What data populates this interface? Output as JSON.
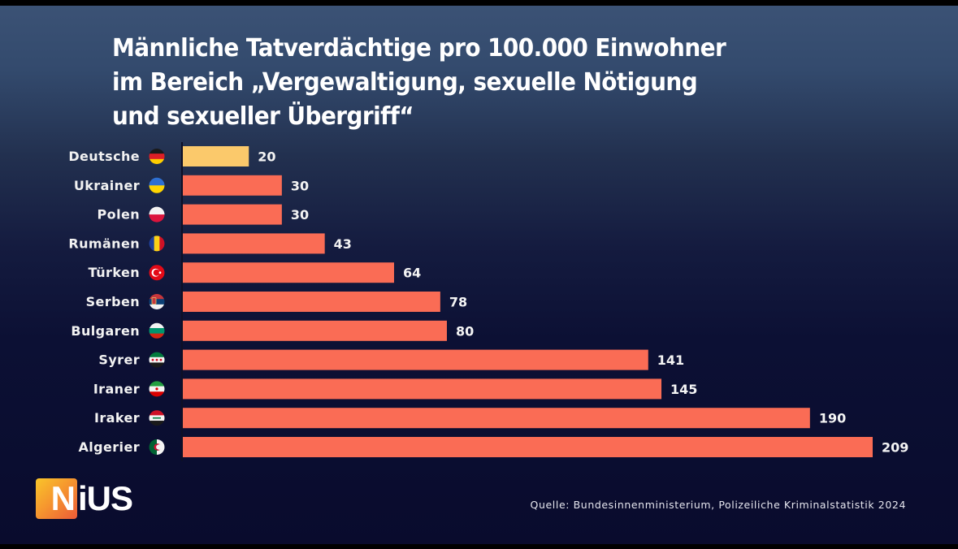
{
  "title_lines": [
    "Männliche Tatverdächtige pro 100.000 Einwohner",
    "im Bereich „Vergewaltigung, sexuelle Nötigung",
    "und sexueller Übergriff“"
  ],
  "chart_data": {
    "type": "bar",
    "orientation": "horizontal",
    "title": "Männliche Tatverdächtige pro 100.000 Einwohner im Bereich „Vergewaltigung, sexuelle Nötigung und sexueller Übergriff“",
    "xlabel": "",
    "ylabel": "",
    "categories": [
      "Deutsche",
      "Ukrainer",
      "Polen",
      "Rumänen",
      "Türken",
      "Serben",
      "Bulgaren",
      "Syrer",
      "Iraner",
      "Iraker",
      "Algerier"
    ],
    "values": [
      20,
      30,
      30,
      43,
      64,
      78,
      80,
      141,
      145,
      190,
      209
    ],
    "xlim": [
      0,
      209
    ],
    "grid": false,
    "data_labels": true,
    "highlight_category": "Deutsche",
    "colors": {
      "highlight": "#fbc96b",
      "default": "#fa6c55"
    },
    "flags": [
      "germany-flag",
      "ukraine-flag",
      "poland-flag",
      "romania-flag",
      "turkey-flag",
      "serbia-flag",
      "bulgaria-flag",
      "syria-flag",
      "iran-flag",
      "iraq-flag",
      "algeria-flag"
    ]
  },
  "logo": {
    "box_letter": "N",
    "rest": "iUS"
  },
  "source": "Quelle: Bundesinnenministerium, Polizeiliche Kriminalstatistik 2024"
}
